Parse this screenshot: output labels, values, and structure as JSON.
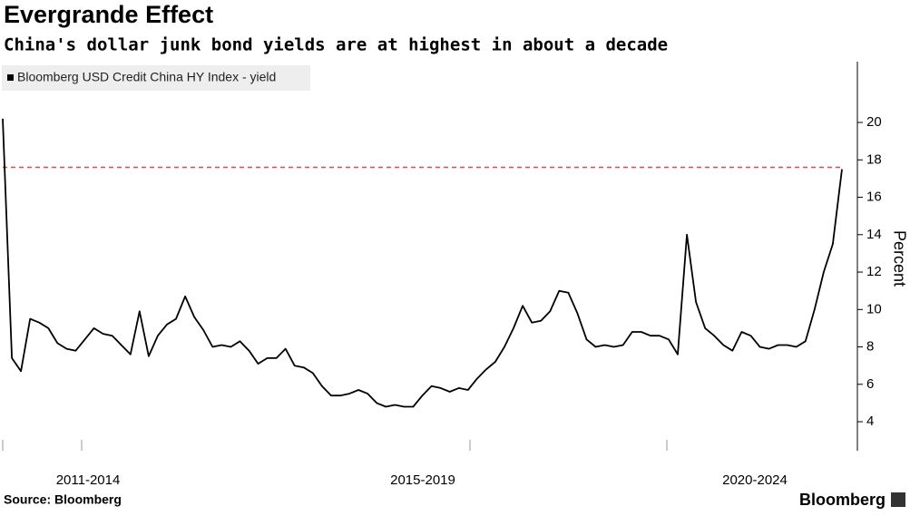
{
  "chart_data": {
    "type": "line",
    "title": "Evergrande Effect",
    "subtitle": "China's dollar junk bond yields are at highest in about a decade",
    "y_label": "Percent",
    "x_labels": [
      "2011-2014",
      "2015-2019",
      "2020-2024"
    ],
    "source": "Source: Bloomberg",
    "brand": "Bloomberg",
    "reference_line": 17.6,
    "reference_color": "#e8454f",
    "series": [
      {
        "name": "Bloomberg USD Credit China HY Index - yield",
        "color": "#000000",
        "values": [
          20.2,
          7.4,
          6.7,
          9.5,
          9.3,
          9.0,
          8.2,
          7.9,
          7.8,
          8.4,
          9.0,
          8.7,
          8.6,
          8.1,
          7.6,
          9.9,
          7.5,
          8.6,
          9.2,
          9.5,
          10.7,
          9.6,
          8.9,
          8.0,
          8.1,
          8.0,
          8.3,
          7.8,
          7.1,
          7.4,
          7.4,
          7.9,
          7.0,
          6.9,
          6.6,
          5.9,
          5.4,
          5.4,
          5.5,
          5.7,
          5.5,
          5.0,
          4.8,
          4.9,
          4.8,
          4.8,
          5.4,
          5.9,
          5.8,
          5.6,
          5.8,
          5.7,
          6.3,
          6.8,
          7.2,
          8.0,
          9.0,
          10.2,
          9.3,
          9.4,
          9.9,
          11.0,
          10.9,
          9.8,
          8.4,
          8.0,
          8.1,
          8.0,
          8.1,
          8.8,
          8.8,
          8.6,
          8.6,
          8.4,
          7.6,
          14.0,
          10.4,
          9.0,
          8.6,
          8.1,
          7.8,
          8.8,
          8.6,
          8.0,
          7.9,
          8.1,
          8.1,
          8.0,
          8.3,
          10.0,
          12.0,
          13.5,
          17.5
        ]
      }
    ],
    "ylim": [
      2.45,
      23.25
    ],
    "yticks": [
      4,
      6,
      8,
      10,
      12,
      14,
      16,
      18,
      20
    ]
  }
}
